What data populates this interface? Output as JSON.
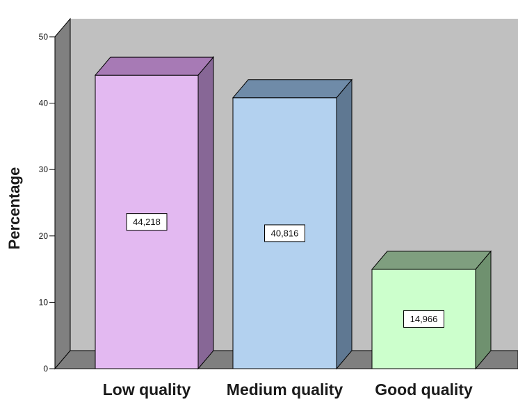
{
  "chart_data": {
    "type": "bar",
    "categories": [
      "Low quality",
      "Medium quality",
      "Good quality"
    ],
    "values": [
      44.218,
      40.816,
      14.966
    ],
    "data_labels": [
      "44,218",
      "40,816",
      "14,966"
    ],
    "ylabel": "Percentage",
    "ylim": [
      0,
      50
    ],
    "yticks": [
      0,
      10,
      20,
      30,
      40,
      50
    ],
    "grid": false,
    "style": "3d",
    "colors": {
      "wall_back": "#c0c0c0",
      "wall_side": "#808080",
      "floor": "#7f7f7f",
      "bars": [
        {
          "front": "#e3b9f1",
          "top": "#a77ab5",
          "side": "#876796"
        },
        {
          "front": "#b3d1ef",
          "top": "#6f8ba8",
          "side": "#5f7892"
        },
        {
          "front": "#ccffcc",
          "top": "#7f9f7f",
          "side": "#6f916f"
        }
      ]
    }
  }
}
